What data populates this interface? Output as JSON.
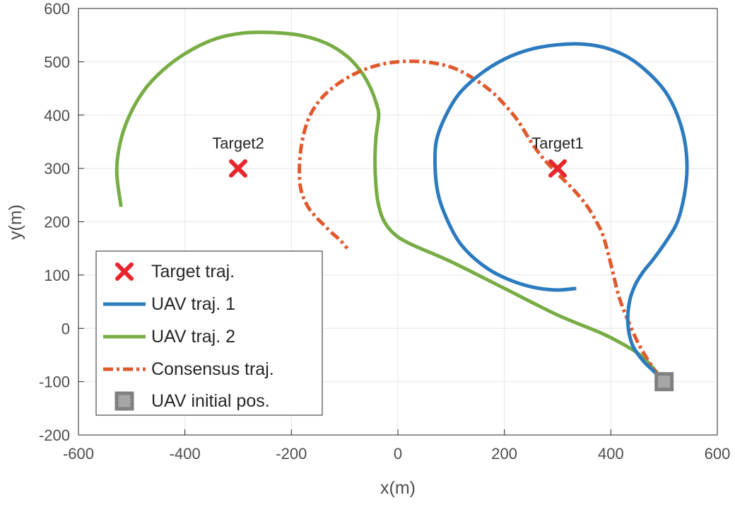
{
  "chart_data": {
    "type": "line",
    "xlabel": "x(m)",
    "ylabel": "y(m)",
    "xlim": [
      -600,
      600
    ],
    "ylim": [
      -200,
      600
    ],
    "xticks": [
      -600,
      -400,
      -200,
      0,
      200,
      400,
      600
    ],
    "yticks": [
      -200,
      -100,
      0,
      100,
      200,
      300,
      400,
      500,
      600
    ],
    "grid": true,
    "legend_position": "bottom-left",
    "legend": [
      "Target traj.",
      "UAV traj. 1",
      "UAV traj. 2",
      "Consensus traj.",
      "UAV initial pos."
    ],
    "annotations": [
      {
        "text": "Target1",
        "x": 300,
        "y": 300
      },
      {
        "text": "Target2",
        "x": -300,
        "y": 300
      }
    ],
    "targets": [
      {
        "x": 300,
        "y": 300
      },
      {
        "x": -300,
        "y": 300
      }
    ],
    "initial_position": {
      "x": 500,
      "y": -100
    },
    "colors": {
      "target": "#e8262e",
      "uav1": "#2c7bbf",
      "uav2": "#78ad45",
      "consensus": "#e0592c",
      "initial": "#808080"
    },
    "series": [
      {
        "name": "UAV traj. 1",
        "style": "solid",
        "x": [
          500,
          480,
          460,
          440,
          432,
          435,
          445,
          460,
          480,
          505,
          525,
          538,
          543,
          539,
          525,
          503,
          472,
          435,
          394,
          350,
          300,
          248,
          200,
          155,
          115,
          88,
          72,
          70,
          76,
          92,
          115,
          145,
          180,
          220,
          260,
          300,
          335
        ],
        "y": [
          -100,
          -80,
          -60,
          -30,
          10,
          50,
          80,
          105,
          130,
          165,
          200,
          250,
          300,
          350,
          400,
          443,
          478,
          507,
          525,
          533,
          532,
          523,
          505,
          477,
          440,
          395,
          350,
          300,
          250,
          205,
          162,
          130,
          105,
          87,
          76,
          72,
          75
        ]
      },
      {
        "name": "UAV traj. 2",
        "style": "solid",
        "x": [
          500,
          480,
          455,
          420,
          380,
          300,
          200,
          100,
          20,
          -10,
          -28,
          -38,
          -42,
          -43,
          -41,
          -36,
          -40,
          -50,
          -68,
          -95,
          -135,
          -185,
          -240,
          -290,
          -340,
          -385,
          -430,
          -470,
          -500,
          -520,
          -528,
          -520
        ],
        "y": [
          -100,
          -75,
          -50,
          -28,
          -8,
          25,
          75,
          125,
          160,
          180,
          205,
          240,
          280,
          320,
          360,
          400,
          420,
          448,
          480,
          510,
          535,
          550,
          555,
          554,
          544,
          524,
          494,
          455,
          408,
          355,
          295,
          228
        ]
      },
      {
        "name": "Consensus traj.",
        "style": "dashdot",
        "x": [
          490,
          470,
          450,
          430,
          415,
          405,
          395,
          385,
          373,
          355,
          330,
          300,
          272,
          250,
          225,
          200,
          175,
          140,
          100,
          50,
          0,
          -40,
          -80,
          -115,
          -145,
          -167,
          -180,
          -185,
          -182,
          -170,
          -155,
          -140,
          -125,
          -108,
          -95
        ],
        "y": [
          -90,
          -60,
          -25,
          20,
          60,
          100,
          140,
          175,
          200,
          230,
          260,
          290,
          320,
          350,
          390,
          420,
          445,
          470,
          490,
          500,
          500,
          493,
          478,
          457,
          430,
          395,
          350,
          300,
          260,
          230,
          210,
          195,
          180,
          165,
          150
        ]
      }
    ]
  }
}
